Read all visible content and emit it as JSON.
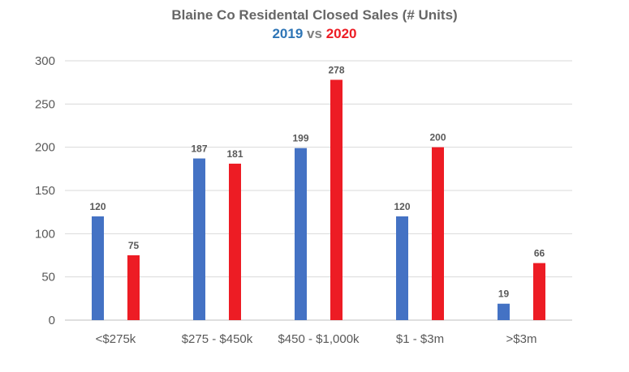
{
  "chart_data": {
    "type": "bar",
    "title": "Blaine Co Residental Closed Sales (# Units)",
    "subtitle": {
      "series_a": "2019",
      "connector": "vs",
      "series_b": "2020"
    },
    "categories": [
      "<$275k",
      "$275 - $450k",
      "$450 - $1,000k",
      "$1 - $3m",
      ">$3m"
    ],
    "series": [
      {
        "name": "2019",
        "color": "#4472C4",
        "values": [
          120,
          187,
          199,
          120,
          19
        ]
      },
      {
        "name": "2020",
        "color": "#ED1C24",
        "values": [
          75,
          181,
          278,
          200,
          66
        ]
      }
    ],
    "ylim": [
      0,
      300
    ],
    "yticks": [
      0,
      50,
      100,
      150,
      200,
      250,
      300
    ],
    "grid": true,
    "legend": "none",
    "data_labels": true,
    "subtitle_colors": {
      "series_a": "#2E75B6",
      "connector": "#7F7F7F",
      "series_b": "#ED1C24"
    }
  }
}
